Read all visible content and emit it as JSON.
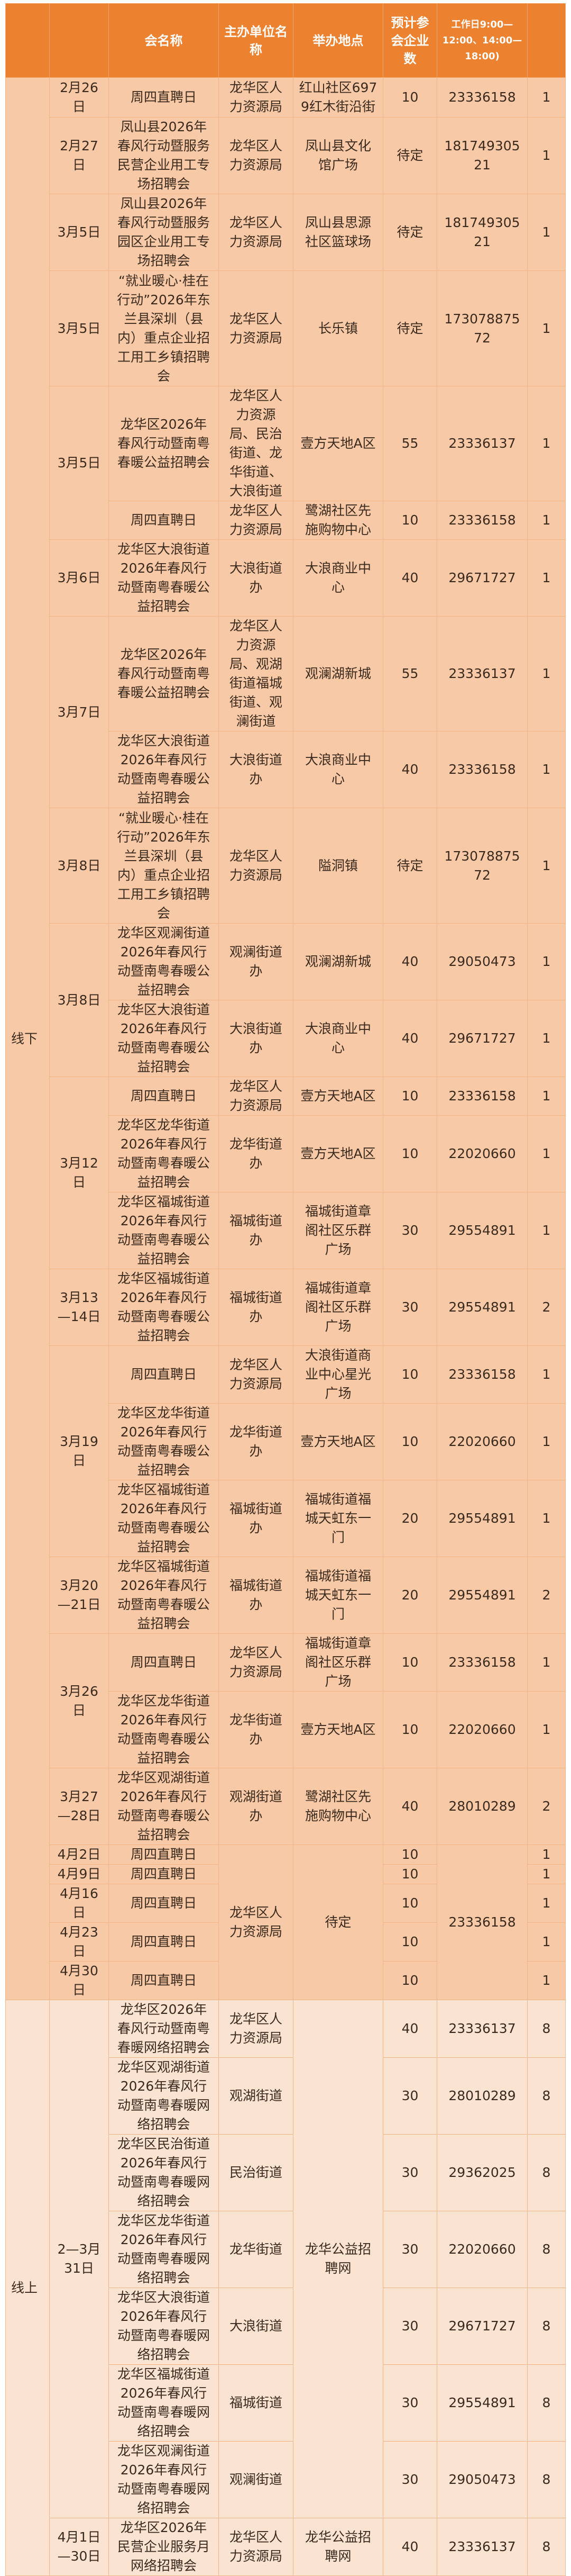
{
  "colors": {
    "header": "#EC8130",
    "offline_row": "#F8C9A6",
    "online_row": "#FBE3D1",
    "border": "#F0B489"
  },
  "header": {
    "mode": "",
    "date": "",
    "name": "会名称",
    "organizer": "主办单位名称",
    "location": "举办地点",
    "companies": "预计参会企业数",
    "phone": "工作日9:00—12:00、14:00—18:00)",
    "sessions": ""
  },
  "rows": [
    {
      "mode": "线下",
      "date": "2月26日",
      "name": "周四直聘日",
      "organizer": "龙华区人力资源局",
      "location": "红山社区6979红木街沿街",
      "companies": "10",
      "phone": "23336158",
      "sessions": "1"
    },
    {
      "mode": null,
      "date": "2月27日",
      "name": "凤山县2026年春风行动暨服务民营企业用工专场招聘会",
      "organizer": "龙华区人力资源局",
      "location": "凤山县文化馆广场",
      "companies": "待定",
      "phone": "18174930521",
      "sessions": "1"
    },
    {
      "mode": null,
      "date": "3月5日",
      "name": "凤山县2026年春风行动暨服务园区企业用工专场招聘会",
      "organizer": "龙华区人力资源局",
      "location": "凤山县思源社区篮球场",
      "companies": "待定",
      "phone": "18174930521",
      "sessions": "1"
    },
    {
      "mode": null,
      "date": "3月5日",
      "name": "“就业暖心·桂在行动”2026年东兰县深圳（县内）重点企业招工用工乡镇招聘会",
      "organizer": "龙华区人力资源局",
      "location": "长乐镇",
      "companies": "待定",
      "phone": "17307887572",
      "sessions": "1"
    },
    {
      "mode": null,
      "date": "3月5日",
      "name": "龙华区2026年春风行动暨南粤春暖公益招聘会",
      "organizer": "龙华区人力资源局、民治街道、龙华街道、大浪街道",
      "location": "壹方天地A区",
      "companies": "55",
      "phone": "23336137",
      "sessions": "1"
    },
    {
      "mode": null,
      "date": null,
      "name": "周四直聘日",
      "organizer": "龙华区人力资源局",
      "location": "鹭湖社区先施购物中心",
      "companies": "10",
      "phone": "23336158",
      "sessions": "1"
    },
    {
      "mode": null,
      "date": "3月6日",
      "name": "龙华区大浪街道2026年春风行动暨南粤春暖公益招聘会",
      "organizer": "大浪街道办",
      "location": "大浪商业中心",
      "companies": "40",
      "phone": "29671727",
      "sessions": "1"
    },
    {
      "mode": null,
      "date": "3月7日",
      "name": "龙华区2026年春风行动暨南粤春暖公益招聘会",
      "organizer": "龙华区人力资源局、观湖街道福城街道、观澜街道",
      "location": "观澜湖新城",
      "companies": "55",
      "phone": "23336137",
      "sessions": "1"
    },
    {
      "mode": null,
      "date": null,
      "name": "龙华区大浪街道2026年春风行动暨南粤春暖公益招聘会",
      "organizer": "大浪街道办",
      "location": "大浪商业中心",
      "companies": "40",
      "phone": "23336158",
      "sessions": "1"
    },
    {
      "mode": null,
      "date": "3月8日",
      "name": "“就业暖心·桂在行动”2026年东兰县深圳（县内）重点企业招工用工乡镇招聘会",
      "organizer": "龙华区人力资源局",
      "location": "隘洞镇",
      "companies": "待定",
      "phone": "17307887572",
      "sessions": "1"
    },
    {
      "mode": null,
      "date": "3月8日",
      "name": "龙华区观澜街道2026年春风行动暨南粤春暖公益招聘会",
      "organizer": "观澜街道办",
      "location": "观澜湖新城",
      "companies": "40",
      "phone": "29050473",
      "sessions": "1"
    },
    {
      "mode": null,
      "date": null,
      "name": "龙华区大浪街道2026年春风行动暨南粤春暖公益招聘会",
      "organizer": "大浪街道办",
      "location": "大浪商业中心",
      "companies": "40",
      "phone": "29671727",
      "sessions": "1"
    },
    {
      "mode": null,
      "date": "3月12日",
      "name": "周四直聘日",
      "organizer": "龙华区人力资源局",
      "location": "壹方天地A区",
      "companies": "10",
      "phone": "23336158",
      "sessions": "1"
    },
    {
      "mode": null,
      "date": null,
      "name": "龙华区龙华街道2026年春风行动暨南粤春暖公益招聘会",
      "organizer": "龙华街道办",
      "location": "壹方天地A区",
      "companies": "10",
      "phone": "22020660",
      "sessions": "1"
    },
    {
      "mode": null,
      "date": null,
      "name": "龙华区福城街道2026年春风行动暨南粤春暖公益招聘会",
      "organizer": "福城街道办",
      "location": "福城街道章阁社区乐群广场",
      "companies": "30",
      "phone": "29554891",
      "sessions": "1"
    },
    {
      "mode": null,
      "date": "3月13—14日",
      "name": "龙华区福城街道2026年春风行动暨南粤春暖公益招聘会",
      "organizer": "福城街道办",
      "location": "福城街道章阁社区乐群广场",
      "companies": "30",
      "phone": "29554891",
      "sessions": "2"
    },
    {
      "mode": null,
      "date": "3月19日",
      "name": "周四直聘日",
      "organizer": "龙华区人力资源局",
      "location": "大浪街道商业中心星光广场",
      "companies": "10",
      "phone": "23336158",
      "sessions": "1"
    },
    {
      "mode": null,
      "date": null,
      "name": "龙华区龙华街道2026年春风行动暨南粤春暖公益招聘会",
      "organizer": "龙华街道办",
      "location": "壹方天地A区",
      "companies": "10",
      "phone": "22020660",
      "sessions": "1"
    },
    {
      "mode": null,
      "date": null,
      "name": "龙华区福城街道2026年春风行动暨南粤春暖公益招聘会",
      "organizer": "福城街道办",
      "location": "福城街道福城天虹东一门",
      "companies": "20",
      "phone": "29554891",
      "sessions": "1"
    },
    {
      "mode": null,
      "date": "3月20—21日",
      "name": "龙华区福城街道2026年春风行动暨南粤春暖公益招聘会",
      "organizer": "福城街道办",
      "location": "福城街道福城天虹东一门",
      "companies": "20",
      "phone": "29554891",
      "sessions": "2"
    },
    {
      "mode": null,
      "date": "3月26日",
      "name": "周四直聘日",
      "organizer": "龙华区人力资源局",
      "location": "福城街道章阁社区乐群广场",
      "companies": "10",
      "phone": "23336158",
      "sessions": "1"
    },
    {
      "mode": null,
      "date": null,
      "name": "龙华区龙华街道2026年春风行动暨南粤春暖公益招聘会",
      "organizer": "龙华街道办",
      "location": "壹方天地A区",
      "companies": "10",
      "phone": "22020660",
      "sessions": "1"
    },
    {
      "mode": null,
      "date": "3月27—28日",
      "name": "龙华区观湖街道2026年春风行动暨南粤春暖公益招聘会",
      "organizer": "观湖街道办",
      "location": "鹭湖社区先施购物中心",
      "companies": "40",
      "phone": "28010289",
      "sessions": "2"
    },
    {
      "mode": null,
      "date": "4月2日",
      "name": "周四直聘日",
      "organizer": "龙华区人力资源局",
      "location": "待定",
      "companies": "10",
      "phone": "23336158",
      "sessions": "1"
    },
    {
      "mode": null,
      "date": "4月9日",
      "name": "周四直聘日",
      "organizer": null,
      "location": null,
      "companies": "10",
      "phone": null,
      "sessions": "1"
    },
    {
      "mode": null,
      "date": "4月16日",
      "name": "周四直聘日",
      "organizer": null,
      "location": null,
      "companies": "10",
      "phone": null,
      "sessions": "1"
    },
    {
      "mode": null,
      "date": "4月23日",
      "name": "周四直聘日",
      "organizer": null,
      "location": null,
      "companies": "10",
      "phone": null,
      "sessions": "1"
    },
    {
      "mode": null,
      "date": "4月30日",
      "name": "周四直聘日",
      "organizer": null,
      "location": null,
      "companies": "10",
      "phone": null,
      "sessions": "1"
    },
    {
      "mode": "线上",
      "date": "2—3月31日",
      "name": "龙华区2026年春风行动暨南粤春暖网络招聘会",
      "organizer": "龙华区人力资源局",
      "location": "龙华公益招聘网",
      "companies": "40",
      "phone": "23336137",
      "sessions": "8"
    },
    {
      "mode": null,
      "date": null,
      "name": "龙华区观湖街道2026年春风行动暨南粤春暖网络招聘会",
      "organizer": "观湖街道",
      "location": null,
      "companies": "30",
      "phone": "28010289",
      "sessions": "8"
    },
    {
      "mode": null,
      "date": null,
      "name": "龙华区民治街道2026年春风行动暨南粤春暖网络招聘会",
      "organizer": "民治街道",
      "location": null,
      "companies": "30",
      "phone": "29362025",
      "sessions": "8"
    },
    {
      "mode": null,
      "date": null,
      "name": "龙华区龙华街道2026年春风行动暨南粤春暖网络招聘会",
      "organizer": "龙华街道",
      "location": null,
      "companies": "30",
      "phone": "22020660",
      "sessions": "8"
    },
    {
      "mode": null,
      "date": null,
      "name": "龙华区大浪街道2026年春风行动暨南粤春暖网络招聘会",
      "organizer": "大浪街道",
      "location": null,
      "companies": "30",
      "phone": "29671727",
      "sessions": "8"
    },
    {
      "mode": null,
      "date": null,
      "name": "龙华区福城街道2026年春风行动暨南粤春暖网络招聘会",
      "organizer": "福城街道",
      "location": null,
      "companies": "30",
      "phone": "29554891",
      "sessions": "8"
    },
    {
      "mode": null,
      "date": null,
      "name": "龙华区观澜街道2026年春风行动暨南粤春暖网络招聘会",
      "organizer": "观澜街道",
      "location": null,
      "companies": "30",
      "phone": "29050473",
      "sessions": "8"
    },
    {
      "mode": null,
      "date": "4月1日—30日",
      "name": "龙华区2026年民营企业服务月网络招聘会",
      "organizer": "龙华区人力资源局",
      "location": "龙华公益招聘网",
      "companies": "40",
      "phone": "23336137",
      "sessions": "8"
    }
  ]
}
